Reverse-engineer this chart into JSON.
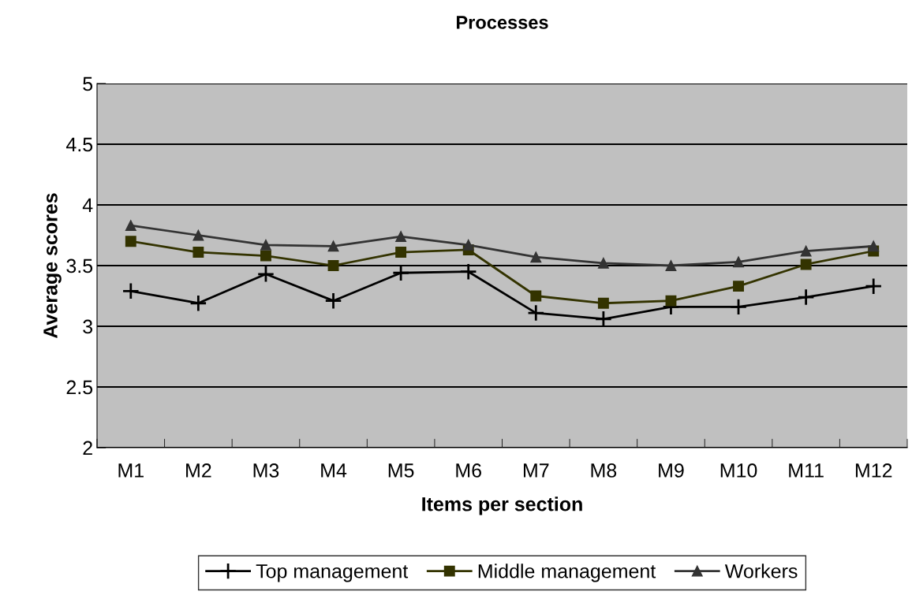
{
  "chart_data": {
    "type": "line",
    "title": "Processes",
    "xlabel": "Items per section",
    "ylabel": "Average scores",
    "categories": [
      "M1",
      "M2",
      "M3",
      "M4",
      "M5",
      "M6",
      "M7",
      "M8",
      "M9",
      "M10",
      "M11",
      "M12"
    ],
    "series": [
      {
        "name": "Top management",
        "color": "#000000",
        "marker": "cross",
        "values": [
          3.29,
          3.19,
          3.43,
          3.21,
          3.44,
          3.45,
          3.11,
          3.06,
          3.16,
          3.16,
          3.24,
          3.33
        ]
      },
      {
        "name": "Middle management",
        "color": "#333300",
        "marker": "square",
        "values": [
          3.7,
          3.61,
          3.58,
          3.5,
          3.61,
          3.63,
          3.25,
          3.19,
          3.21,
          3.33,
          3.51,
          3.62
        ]
      },
      {
        "name": "Workers",
        "color": "#333333",
        "marker": "triangle",
        "values": [
          3.83,
          3.75,
          3.67,
          3.66,
          3.74,
          3.67,
          3.57,
          3.52,
          3.5,
          3.53,
          3.62,
          3.66
        ]
      }
    ],
    "ylim": [
      2,
      5
    ],
    "yticks": [
      2,
      2.5,
      3,
      3.5,
      4,
      4.5,
      5
    ],
    "grid": "y",
    "legend": "bottom",
    "line_style": "solid"
  }
}
